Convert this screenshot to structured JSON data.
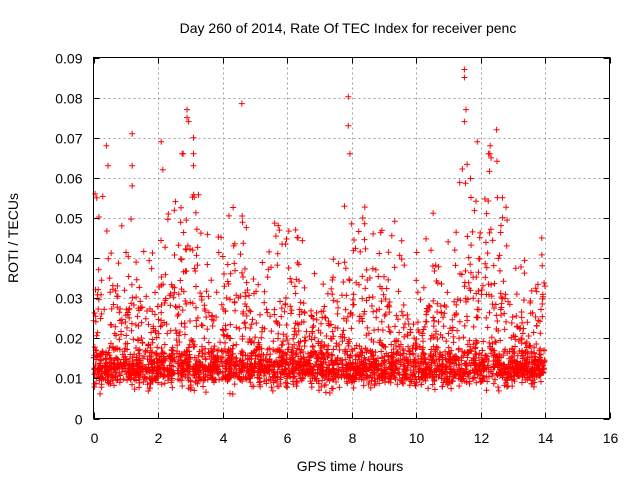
{
  "chart_data": {
    "type": "scatter",
    "title": "Day 260 of 2014, Rate Of TEC Index for receiver penc",
    "xlabel": "GPS time / hours",
    "ylabel": "ROTI / TECUs",
    "xlim": [
      0,
      16
    ],
    "ylim": [
      0,
      0.09
    ],
    "x_ticks": [
      0,
      2,
      4,
      6,
      8,
      10,
      12,
      14,
      16
    ],
    "y_ticks": [
      0,
      0.01,
      0.02,
      0.03,
      0.04,
      0.05,
      0.06,
      0.07,
      0.08,
      0.09
    ],
    "x_tick_labels": [
      "0",
      "2",
      "4",
      "6",
      "8",
      "10",
      "12",
      "14",
      "16"
    ],
    "y_tick_labels": [
      "0",
      "0.01",
      "0.02",
      "0.03",
      "0.04",
      "0.05",
      "0.06",
      "0.07",
      "0.08",
      "0.09"
    ],
    "grid": true,
    "marker": "+",
    "series": [
      {
        "name": "ROTI",
        "color": "#ff0000",
        "data_range_x": [
          0,
          14
        ],
        "notable_points": [
          {
            "x": 0.05,
            "y": 0.056
          },
          {
            "x": 0.1,
            "y": 0.055
          },
          {
            "x": 0.4,
            "y": 0.068
          },
          {
            "x": 0.45,
            "y": 0.063
          },
          {
            "x": 1.2,
            "y": 0.071
          },
          {
            "x": 1.2,
            "y": 0.063
          },
          {
            "x": 1.2,
            "y": 0.058
          },
          {
            "x": 2.1,
            "y": 0.069
          },
          {
            "x": 2.15,
            "y": 0.062
          },
          {
            "x": 2.9,
            "y": 0.077
          },
          {
            "x": 2.9,
            "y": 0.075
          },
          {
            "x": 2.95,
            "y": 0.074
          },
          {
            "x": 3.1,
            "y": 0.07
          },
          {
            "x": 3.1,
            "y": 0.063
          },
          {
            "x": 4.6,
            "y": 0.0785
          },
          {
            "x": 7.9,
            "y": 0.0802
          },
          {
            "x": 7.9,
            "y": 0.073
          },
          {
            "x": 7.95,
            "y": 0.066
          },
          {
            "x": 11.5,
            "y": 0.087
          },
          {
            "x": 11.5,
            "y": 0.085
          },
          {
            "x": 11.55,
            "y": 0.077
          },
          {
            "x": 11.5,
            "y": 0.074
          },
          {
            "x": 12.5,
            "y": 0.072
          },
          {
            "x": 12.3,
            "y": 0.068
          },
          {
            "x": 11.9,
            "y": 0.069
          },
          {
            "x": 13.9,
            "y": 0.045
          },
          {
            "x": 14.0,
            "y": 0.033
          }
        ]
      }
    ]
  }
}
